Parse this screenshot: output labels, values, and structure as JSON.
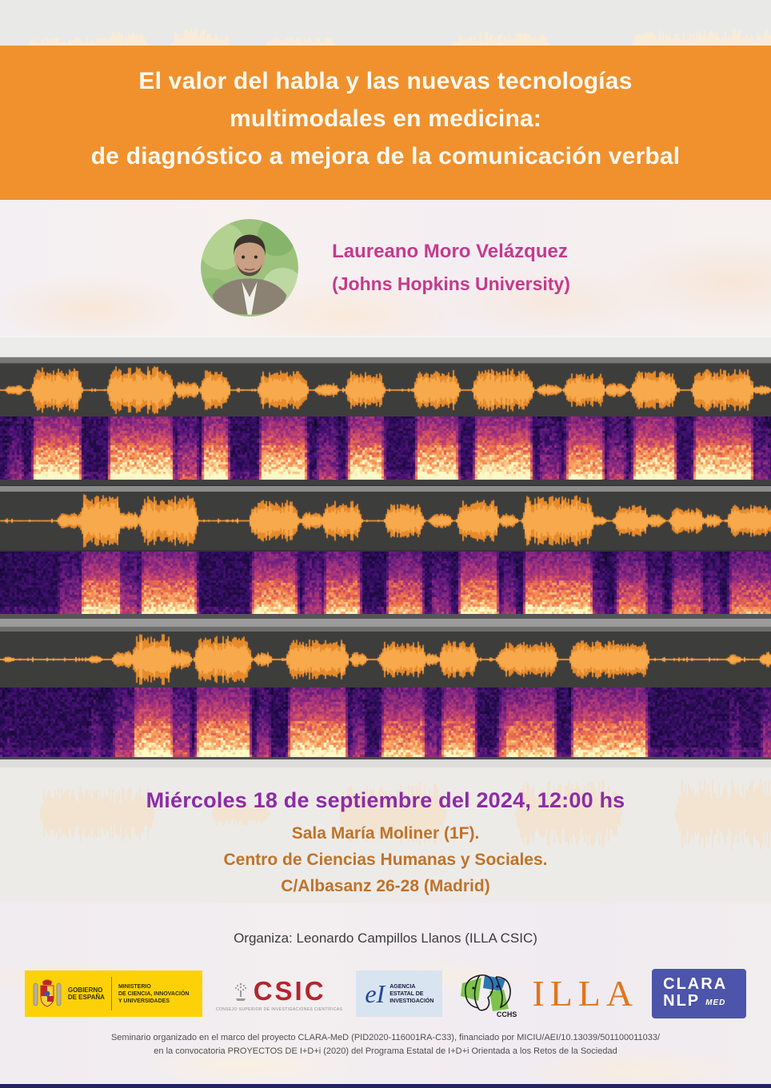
{
  "poster": {
    "title_lines": [
      "El valor del habla y las nuevas tecnologías",
      "multimodales en medicina:",
      "de diagnóstico a mejora de la comunicación verbal"
    ],
    "speaker": {
      "name": "Laureano Moro Velázquez",
      "affiliation": "(Johns Hopkins University)"
    },
    "event": {
      "datetime": "Miércoles 18 de septiembre del 2024, 12:00 hs",
      "location_lines": [
        "Sala María Moliner (1F).",
        "Centro de Ciencias Humanas y Sociales.",
        "C/Albasanz 26-28 (Madrid)"
      ]
    },
    "organizer": "Organiza: Leonardo Campillos Llanos (ILLA CSIC)",
    "logos": {
      "gobierno": {
        "line1": "GOBIERNO",
        "line2": "DE ESPAÑA",
        "ministry_lines": [
          "MINISTERIO",
          "DE CIENCIA, INNOVACIÓN",
          "Y UNIVERSIDADES"
        ]
      },
      "csic": {
        "acronym": "CSIC",
        "caption": "CONSEJO SUPERIOR DE INVESTIGACIONES CIENTÍFICAS"
      },
      "aei": {
        "monogram": "eI",
        "label_lines": [
          "AGENCIA",
          "ESTATAL DE",
          "INVESTIGACIÓN"
        ]
      },
      "cchs": {
        "label": "CCHS"
      },
      "illa": {
        "label": "ILLA"
      },
      "clara_med": {
        "line1": "CLARA",
        "line2": "NLP",
        "badge": "MED"
      }
    },
    "footer_lines": [
      "Seminario organizado en el marco del proyecto CLARA-MeD (PID2020-116001RA-C33), financiado por MICIU/AEI/10.13039/501100011033/",
      "en la convocatoria PROYECTOS DE I+D+i (2020) del Programa Estatal de I+D+i Orientada a los Retos de la Sociedad"
    ],
    "colors": {
      "banner_orange": "#f0912d",
      "speaker_pink": "#c43a8d",
      "date_purple": "#8e2ba6",
      "location_orange": "#bf7329",
      "waveform_orange": "#f7a94c",
      "waveform_background": "#3d3d3c"
    }
  }
}
